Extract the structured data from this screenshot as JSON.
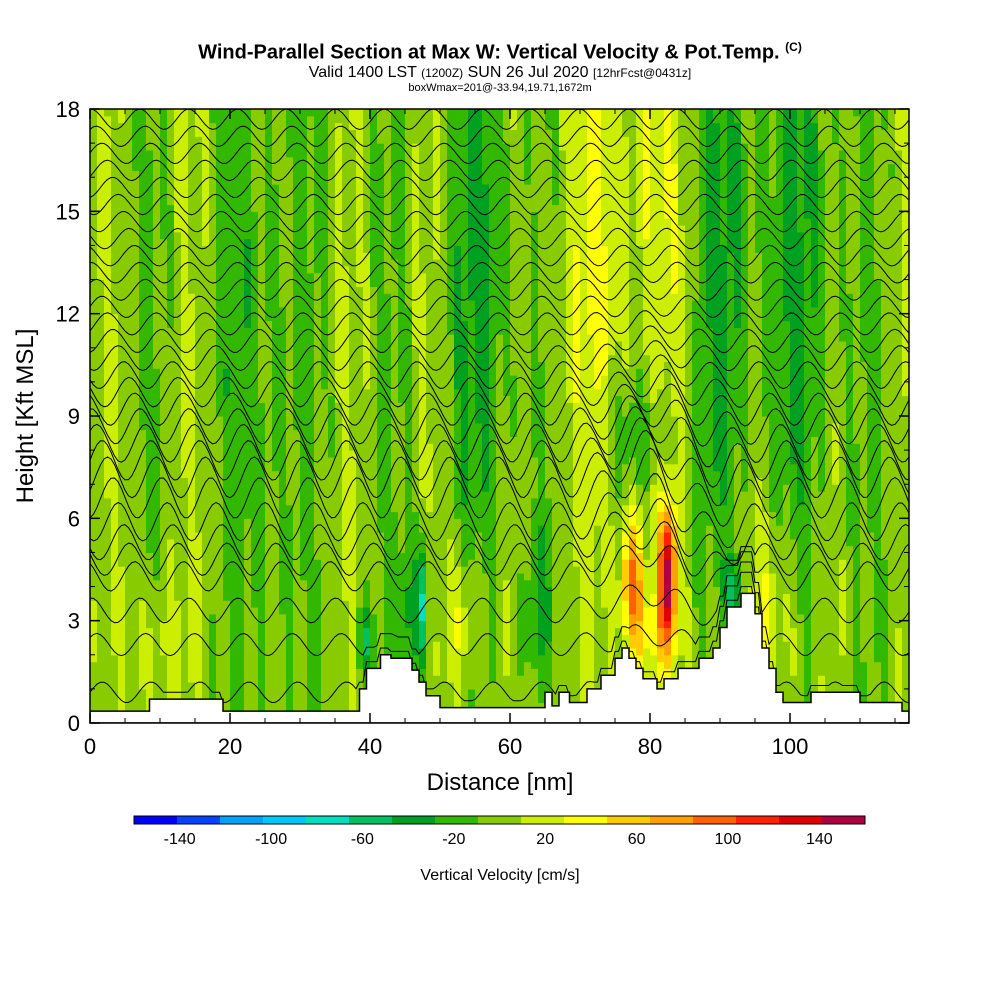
{
  "header": {
    "title": "Wind-Parallel Section at Max W: Vertical Velocity & Pot.Temp.",
    "title_mark": "(C)",
    "valid_prefix": "Valid 1400 LST",
    "valid_utc": "(1200Z)",
    "valid_date": "SUN 26 Jul 2020",
    "forecast": "[12hrFcst@0431z]",
    "box_info": "boxWmax=201@-33.94,19.71,1672m"
  },
  "chart_data": {
    "type": "heatmap",
    "xlabel": "Distance [nm]",
    "ylabel": "Height [Kft MSL]",
    "xlim": [
      0,
      117
    ],
    "ylim": [
      0,
      18
    ],
    "x_ticks": [
      0,
      20,
      40,
      60,
      80,
      100
    ],
    "y_ticks": [
      0,
      3,
      6,
      9,
      12,
      15,
      18
    ],
    "colorbar": {
      "title": "Vertical Velocity [cm/s]",
      "tick_labels": [
        "-140",
        "-100",
        "-60",
        "-20",
        "20",
        "60",
        "100",
        "140"
      ],
      "bins": [
        -160,
        -140,
        -120,
        -100,
        -80,
        -60,
        -40,
        -20,
        0,
        20,
        40,
        60,
        80,
        100,
        120,
        140,
        160
      ],
      "colors": [
        "#0000ff",
        "#0044ff",
        "#00a0ff",
        "#00c8ff",
        "#00e0c0",
        "#00c060",
        "#00a020",
        "#33b800",
        "#88cc00",
        "#ccee00",
        "#ffff00",
        "#ffcc00",
        "#ffa000",
        "#ff6000",
        "#ff2000",
        "#e00000",
        "#b00040"
      ]
    },
    "terrain_top_kft": [
      [
        0,
        0.35
      ],
      [
        8.5,
        0.35
      ],
      [
        8.5,
        0.7
      ],
      [
        19,
        0.7
      ],
      [
        19,
        0.35
      ],
      [
        38.5,
        0.35
      ],
      [
        38.5,
        1.0
      ],
      [
        39.5,
        1.0
      ],
      [
        39.5,
        1.6
      ],
      [
        41.5,
        1.6
      ],
      [
        41.5,
        2.0
      ],
      [
        43,
        2.0
      ],
      [
        43,
        1.9
      ],
      [
        46,
        1.9
      ],
      [
        46,
        1.55
      ],
      [
        47,
        1.55
      ],
      [
        47,
        1.2
      ],
      [
        48,
        1.2
      ],
      [
        48,
        0.8
      ],
      [
        50,
        0.8
      ],
      [
        50,
        0.45
      ],
      [
        65,
        0.45
      ],
      [
        65,
        0.9
      ],
      [
        66,
        0.9
      ],
      [
        66,
        0.5
      ],
      [
        67,
        0.5
      ],
      [
        67,
        0.9
      ],
      [
        68.5,
        0.9
      ],
      [
        68.5,
        0.6
      ],
      [
        71,
        0.6
      ],
      [
        71,
        1.0
      ],
      [
        73,
        1.0
      ],
      [
        73,
        1.4
      ],
      [
        75,
        1.4
      ],
      [
        75,
        1.9
      ],
      [
        76,
        1.9
      ],
      [
        76,
        2.2
      ],
      [
        77,
        2.2
      ],
      [
        77,
        1.9
      ],
      [
        78,
        1.9
      ],
      [
        78,
        1.6
      ],
      [
        79,
        1.6
      ],
      [
        79,
        1.3
      ],
      [
        81,
        1.3
      ],
      [
        81,
        1.0
      ],
      [
        82,
        1.0
      ],
      [
        82,
        1.3
      ],
      [
        84,
        1.3
      ],
      [
        84,
        1.6
      ],
      [
        87,
        1.6
      ],
      [
        87,
        1.9
      ],
      [
        89,
        1.9
      ],
      [
        89,
        2.2
      ],
      [
        90,
        2.2
      ],
      [
        90,
        2.8
      ],
      [
        91,
        2.8
      ],
      [
        91,
        3.4
      ],
      [
        93,
        3.4
      ],
      [
        93,
        3.8
      ],
      [
        95,
        3.8
      ],
      [
        95,
        3.2
      ],
      [
        96,
        3.2
      ],
      [
        96,
        2.2
      ],
      [
        97,
        2.2
      ],
      [
        97,
        1.6
      ],
      [
        98,
        1.6
      ],
      [
        98,
        0.9
      ],
      [
        99,
        0.9
      ],
      [
        99,
        0.6
      ],
      [
        103,
        0.6
      ],
      [
        103,
        0.9
      ],
      [
        110,
        0.9
      ],
      [
        110,
        0.6
      ],
      [
        116,
        0.6
      ],
      [
        116,
        0.35
      ],
      [
        117,
        0.35
      ]
    ],
    "theta_levels_base_kft": [
      0.9,
      2.3,
      3.3,
      4.3,
      4.8,
      5.3,
      5.9,
      6.6,
      7.2,
      7.7,
      8.2,
      8.7,
      9.2,
      9.7,
      10.2,
      10.7,
      11.2,
      11.7,
      12.2,
      12.7,
      13.2,
      13.7,
      14.2,
      14.7,
      15.2,
      15.7,
      16.2,
      16.7,
      17.2,
      17.7
    ]
  }
}
